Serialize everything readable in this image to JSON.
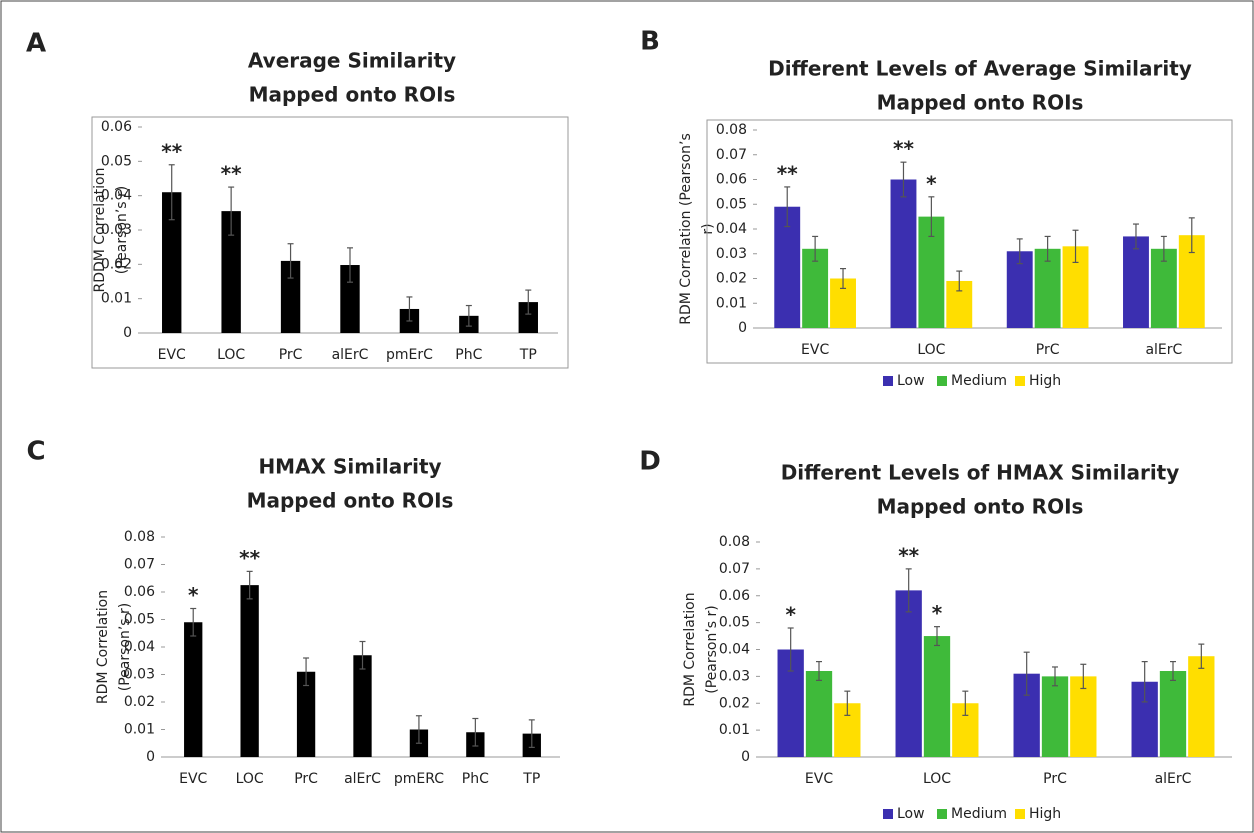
{
  "chart_data": [
    {
      "type": "bar",
      "panel": "A",
      "title": [
        "Average Similarity",
        "Mapped onto ROIs"
      ],
      "y_label": [
        "RDDM Correlation",
        "(Pearson’s r)"
      ],
      "frame": true,
      "categories": [
        "EVC",
        "LOC",
        "PrC",
        "alErC",
        "pmErC",
        "PhC",
        "TP"
      ],
      "values": [
        0.041,
        0.0355,
        0.021,
        0.0198,
        0.007,
        0.005,
        0.009
      ],
      "errors": [
        0.008,
        0.007,
        0.005,
        0.005,
        0.0035,
        0.003,
        0.0035
      ],
      "significance": [
        "**",
        "**",
        null,
        null,
        null,
        null,
        null
      ],
      "color": "#000000",
      "ylim": [
        0,
        0.06
      ],
      "yticks": [
        0,
        0.01,
        0.02,
        0.03,
        0.04,
        0.05,
        0.06
      ]
    },
    {
      "type": "bar",
      "panel": "B",
      "title": [
        "Different Levels of Average Similarity",
        "Mapped onto ROIs"
      ],
      "y_label": [
        "RDM Correlation (Pearson’s",
        "r)"
      ],
      "frame": true,
      "categories": [
        "EVC",
        "LOC",
        "PrC",
        "alErC"
      ],
      "series": [
        {
          "name": "Low",
          "color": "#3b2fb0",
          "values": [
            0.049,
            0.06,
            0.031,
            0.037
          ],
          "errors": [
            0.008,
            0.007,
            0.005,
            0.005
          ],
          "significance": [
            "**",
            "**",
            null,
            null
          ]
        },
        {
          "name": "Medium",
          "color": "#3fba3a",
          "values": [
            0.032,
            0.045,
            0.032,
            0.032
          ],
          "errors": [
            0.005,
            0.008,
            0.005,
            0.005
          ],
          "significance": [
            null,
            "*",
            null,
            null
          ]
        },
        {
          "name": "High",
          "color": "#ffde00",
          "values": [
            0.02,
            0.019,
            0.033,
            0.0375
          ],
          "errors": [
            0.004,
            0.004,
            0.0065,
            0.007
          ],
          "significance": [
            null,
            null,
            null,
            null
          ]
        }
      ],
      "ylim": [
        0,
        0.08
      ],
      "yticks": [
        0,
        0.01,
        0.02,
        0.03,
        0.04,
        0.05,
        0.06,
        0.07,
        0.08
      ],
      "legend": "bottom"
    },
    {
      "type": "bar",
      "panel": "C",
      "title": [
        "HMAX Similarity",
        "Mapped onto ROIs"
      ],
      "y_label": [
        "RDM Correlation",
        "(Pearson’s r)"
      ],
      "frame": false,
      "categories": [
        "EVC",
        "LOC",
        "PrC",
        "alErC",
        "pmERC",
        "PhC",
        "TP"
      ],
      "values": [
        0.049,
        0.0625,
        0.031,
        0.037,
        0.01,
        0.009,
        0.0085
      ],
      "errors": [
        0.005,
        0.005,
        0.005,
        0.005,
        0.005,
        0.005,
        0.005
      ],
      "significance": [
        "*",
        "**",
        null,
        null,
        null,
        null,
        null
      ],
      "color": "#000000",
      "ylim": [
        0,
        0.08
      ],
      "yticks": [
        0,
        0.01,
        0.02,
        0.03,
        0.04,
        0.05,
        0.06,
        0.07,
        0.08
      ]
    },
    {
      "type": "bar",
      "panel": "D",
      "title": [
        "Different Levels of HMAX Similarity",
        "Mapped onto ROIs"
      ],
      "y_label": [
        "RDM Correlation",
        "(Pearson’s r)"
      ],
      "frame": false,
      "categories": [
        "EVC",
        "LOC",
        "PrC",
        "alErC"
      ],
      "series": [
        {
          "name": "Low",
          "color": "#3b2fb0",
          "values": [
            0.04,
            0.062,
            0.031,
            0.028
          ],
          "errors": [
            0.008,
            0.008,
            0.008,
            0.0075
          ],
          "significance": [
            "*",
            "**",
            null,
            null
          ]
        },
        {
          "name": "Medium",
          "color": "#3fba3a",
          "values": [
            0.032,
            0.045,
            0.03,
            0.032
          ],
          "errors": [
            0.0035,
            0.0035,
            0.0035,
            0.0035
          ],
          "significance": [
            null,
            "*",
            null,
            null
          ]
        },
        {
          "name": "High",
          "color": "#ffde00",
          "values": [
            0.02,
            0.02,
            0.03,
            0.0375
          ],
          "errors": [
            0.0045,
            0.0045,
            0.0045,
            0.0045
          ],
          "significance": [
            null,
            null,
            null,
            null
          ]
        }
      ],
      "ylim": [
        0,
        0.08
      ],
      "yticks": [
        0,
        0.01,
        0.02,
        0.03,
        0.04,
        0.05,
        0.06,
        0.07,
        0.08
      ],
      "legend": "bottom"
    }
  ]
}
